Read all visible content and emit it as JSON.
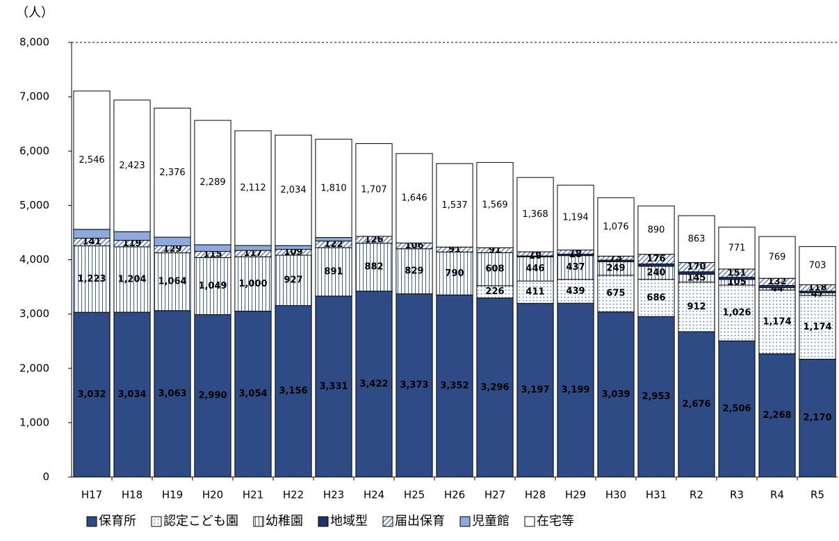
{
  "chart_data": {
    "type": "stacked_bar",
    "y_unit_label": "（人）",
    "categories": [
      "H17",
      "H18",
      "H19",
      "H20",
      "H21",
      "H22",
      "H23",
      "H24",
      "H25",
      "H26",
      "H27",
      "H28",
      "H29",
      "H30",
      "H31",
      "R2",
      "R3",
      "R4",
      "R5"
    ],
    "series": [
      {
        "name": "保育所",
        "color": "#2e4b86",
        "pattern": "solid",
        "label_color": "#ffffff",
        "label_bold": true,
        "values": [
          3032,
          3034,
          3063,
          2990,
          3054,
          3156,
          3331,
          3422,
          3373,
          3352,
          3296,
          3197,
          3199,
          3039,
          2953,
          2676,
          2506,
          2268,
          2170
        ],
        "value_labels": [
          "3,032",
          "3,034",
          "3,063",
          "2,990",
          "3,054",
          "3,156",
          "3,331",
          "3,422",
          "3,373",
          "3,352",
          "3,296",
          "3,197",
          "3,199",
          "3,039",
          "2,953",
          "2,676",
          "2,506",
          "2,268",
          "2,170"
        ]
      },
      {
        "name": "認定こども園",
        "color": "#4a6fb5",
        "pattern": "dots",
        "label_color": "#000000",
        "label_bold": true,
        "values": [
          null,
          null,
          null,
          null,
          null,
          null,
          null,
          null,
          null,
          null,
          226,
          411,
          439,
          675,
          686,
          912,
          1026,
          1174,
          1174
        ],
        "value_labels": [
          null,
          null,
          null,
          null,
          null,
          null,
          null,
          null,
          null,
          null,
          "226",
          "411",
          "439",
          "675",
          "686",
          "912",
          "1,026",
          "1,174",
          "1,174"
        ]
      },
      {
        "name": "幼稚園",
        "color": "#3a5fa8",
        "pattern": "vlines",
        "label_color": "#000000",
        "label_bold": true,
        "values": [
          1223,
          1204,
          1064,
          1049,
          1000,
          927,
          891,
          882,
          829,
          790,
          608,
          446,
          437,
          249,
          240,
          145,
          105,
          44,
          47
        ],
        "value_labels": [
          "1,223",
          "1,204",
          "1,064",
          "1,049",
          "1,000",
          "927",
          "891",
          "882",
          "829",
          "790",
          "608",
          "446",
          "437",
          "249",
          "240",
          "145",
          "105",
          "44",
          "47"
        ]
      },
      {
        "name": "地域型",
        "color": "#1e3566",
        "pattern": "solid",
        "label_color": "#000000",
        "label_bold": true,
        "values": [
          null,
          null,
          null,
          null,
          null,
          null,
          null,
          null,
          null,
          null,
          null,
          16,
          28,
          30,
          45,
          45,
          40,
          40,
          30
        ],
        "value_labels": [
          null,
          null,
          null,
          null,
          null,
          null,
          null,
          null,
          null,
          null,
          null,
          "16",
          "28",
          null,
          null,
          null,
          null,
          null,
          null
        ]
      },
      {
        "name": "届出保育",
        "color": "#5b7fc0",
        "pattern": "hatch",
        "label_color": "#000000",
        "label_bold": true,
        "values": [
          141,
          119,
          129,
          115,
          117,
          109,
          122,
          126,
          106,
          91,
          91,
          76,
          76,
          73,
          176,
          170,
          151,
          132,
          118
        ],
        "value_labels": [
          "141",
          "119",
          "129",
          "115",
          "117",
          "109",
          "122",
          "126",
          "106",
          "91",
          "91",
          "76",
          "76",
          "73",
          "176",
          "170",
          "151",
          "132",
          "118"
        ]
      },
      {
        "name": "児童館",
        "color": "#8ea9dc",
        "pattern": "solid",
        "label_color": "#000000",
        "label_bold": false,
        "values": [
          163,
          159,
          159,
          122,
          91,
          68,
          65,
          null,
          null,
          null,
          null,
          null,
          null,
          null,
          null,
          null,
          null,
          null,
          null
        ],
        "value_labels": [
          "163",
          "159",
          "159",
          "122",
          "91",
          "68",
          "65",
          null,
          null,
          null,
          null,
          null,
          null,
          null,
          null,
          null,
          null,
          null,
          null
        ]
      },
      {
        "name": "在宅等",
        "color": "#ffffff",
        "pattern": "solid",
        "label_color": "#000000",
        "label_bold": false,
        "values": [
          2546,
          2423,
          2376,
          2289,
          2112,
          2034,
          1810,
          1707,
          1646,
          1537,
          1569,
          1368,
          1194,
          1076,
          890,
          863,
          771,
          769,
          703
        ],
        "value_labels": [
          "2,546",
          "2,423",
          "2,376",
          "2,289",
          "2,112",
          "2,034",
          "1,810",
          "1,707",
          "1,646",
          "1,537",
          "1,569",
          "1,368",
          "1,194",
          "1,076",
          "890",
          "863",
          "771",
          "769",
          "703"
        ]
      }
    ],
    "ylim": [
      0,
      8000
    ],
    "yticks": [
      0,
      {
        "value": 1000,
        "label": "1,000"
      },
      {
        "value": 2000,
        "label": "2,000"
      },
      {
        "value": 3000,
        "label": "3,000"
      },
      {
        "value": 4000,
        "label": "4,000"
      },
      {
        "value": 5000,
        "label": "5,000"
      },
      {
        "value": 6000,
        "label": "6,000"
      },
      {
        "value": 7000,
        "label": "7,000"
      },
      {
        "value": 8000,
        "label": "8,000"
      }
    ],
    "grid": false,
    "legend": "bottom"
  }
}
